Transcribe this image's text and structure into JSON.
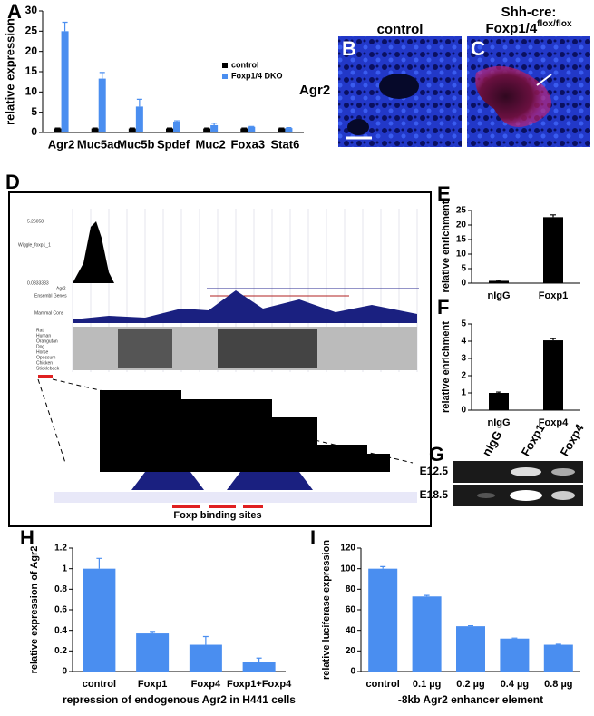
{
  "chart_data": [
    {
      "type": "bar",
      "panel": "A",
      "ylabel": "relative expression",
      "categories": [
        "Agr2",
        "Muc5ac",
        "Muc5b",
        "Spdef",
        "Muc2",
        "Foxa3",
        "Stat6"
      ],
      "series": [
        {
          "name": "control",
          "color": "#000000",
          "values": [
            1,
            1,
            1,
            1,
            1,
            1,
            1
          ],
          "errors": [
            0.1,
            0.1,
            0.1,
            0.1,
            0.1,
            0.1,
            0.1
          ]
        },
        {
          "name": "Foxp1/4 DKO",
          "color": "#4a8ef0",
          "values": [
            25,
            13.3,
            6.4,
            2.7,
            1.8,
            1.4,
            1.1
          ],
          "errors": [
            2.2,
            1.5,
            1.8,
            0.2,
            0.5,
            0.1,
            0.1
          ]
        }
      ],
      "ylim": [
        0,
        30
      ],
      "yticks": [
        0,
        5,
        10,
        15,
        20,
        25,
        30
      ]
    },
    {
      "type": "bar",
      "panel": "E",
      "ylabel": "relative enrichment",
      "categories": [
        "nIgG",
        "Foxp1"
      ],
      "series": [
        {
          "color": "#000000",
          "values": [
            0.8,
            22.7
          ],
          "errors": [
            0.2,
            0.8
          ]
        }
      ],
      "ylim": [
        0,
        25
      ],
      "yticks": [
        0,
        5,
        10,
        15,
        20,
        25
      ]
    },
    {
      "type": "bar",
      "panel": "F",
      "ylabel": "relative enrichment",
      "categories": [
        "nIgG",
        "Foxp4"
      ],
      "series": [
        {
          "color": "#000000",
          "values": [
            1.0,
            4.05
          ],
          "errors": [
            0.05,
            0.1
          ]
        }
      ],
      "ylim": [
        0,
        5
      ],
      "yticks": [
        0,
        1,
        2,
        3,
        4,
        5
      ]
    },
    {
      "type": "bar",
      "panel": "H",
      "ylabel": "relative expression of Agr2",
      "xlabel": "repression of endogenous Agr2 in H441 cells",
      "categories": [
        "control",
        "Foxp1",
        "Foxp4",
        "Foxp1+Foxp4"
      ],
      "series": [
        {
          "color": "#4a8ef0",
          "values": [
            1.0,
            0.37,
            0.26,
            0.09
          ],
          "errors": [
            0.1,
            0.02,
            0.08,
            0.04
          ]
        }
      ],
      "ylim": [
        0,
        1.2
      ],
      "yticks": [
        0,
        0.2,
        0.4,
        0.6,
        0.8,
        1,
        1.2
      ]
    },
    {
      "type": "bar",
      "panel": "I",
      "ylabel": "relative luciferase expression",
      "xlabel": "-8kb Agr2 enhancer element",
      "categories": [
        "control",
        "0.1 µg",
        "0.2 µg",
        "0.4 µg",
        "0.8 µg"
      ],
      "series": [
        {
          "color": "#4a8ef0",
          "values": [
            100,
            73,
            44,
            32,
            26
          ],
          "errors": [
            2,
            1,
            0.5,
            0.5,
            0.5
          ]
        }
      ],
      "ylim": [
        0,
        120
      ],
      "yticks": [
        0,
        20,
        40,
        60,
        80,
        100,
        120
      ]
    }
  ],
  "micrographs": {
    "label_b": "B",
    "label_c": "C",
    "title_b": "control",
    "title_c_line1": "Shh-cre:",
    "title_c_gene": "Foxp1/4",
    "title_c_sup": "flox/flox",
    "row_label": "Agr2"
  },
  "browser": {
    "panel": "D",
    "track_wiggle": "Wiggle_foxp1_1",
    "max_top": "5.26058",
    "min_top": "0.0833333",
    "gene": "Agr2",
    "ensembl": "Ensembl Genes",
    "mammal": "Mammal Cons",
    "species": [
      "Rat",
      "Human",
      "Orangutan",
      "Dog",
      "Horse",
      "Opossum",
      "Chicken",
      "Stickleback"
    ],
    "caption": "Foxp binding sites"
  },
  "gel": {
    "panel": "G",
    "lanes": [
      "nIgG",
      "Foxp1",
      "Foxp4"
    ],
    "rows": [
      "E12.5",
      "E18.5"
    ]
  }
}
